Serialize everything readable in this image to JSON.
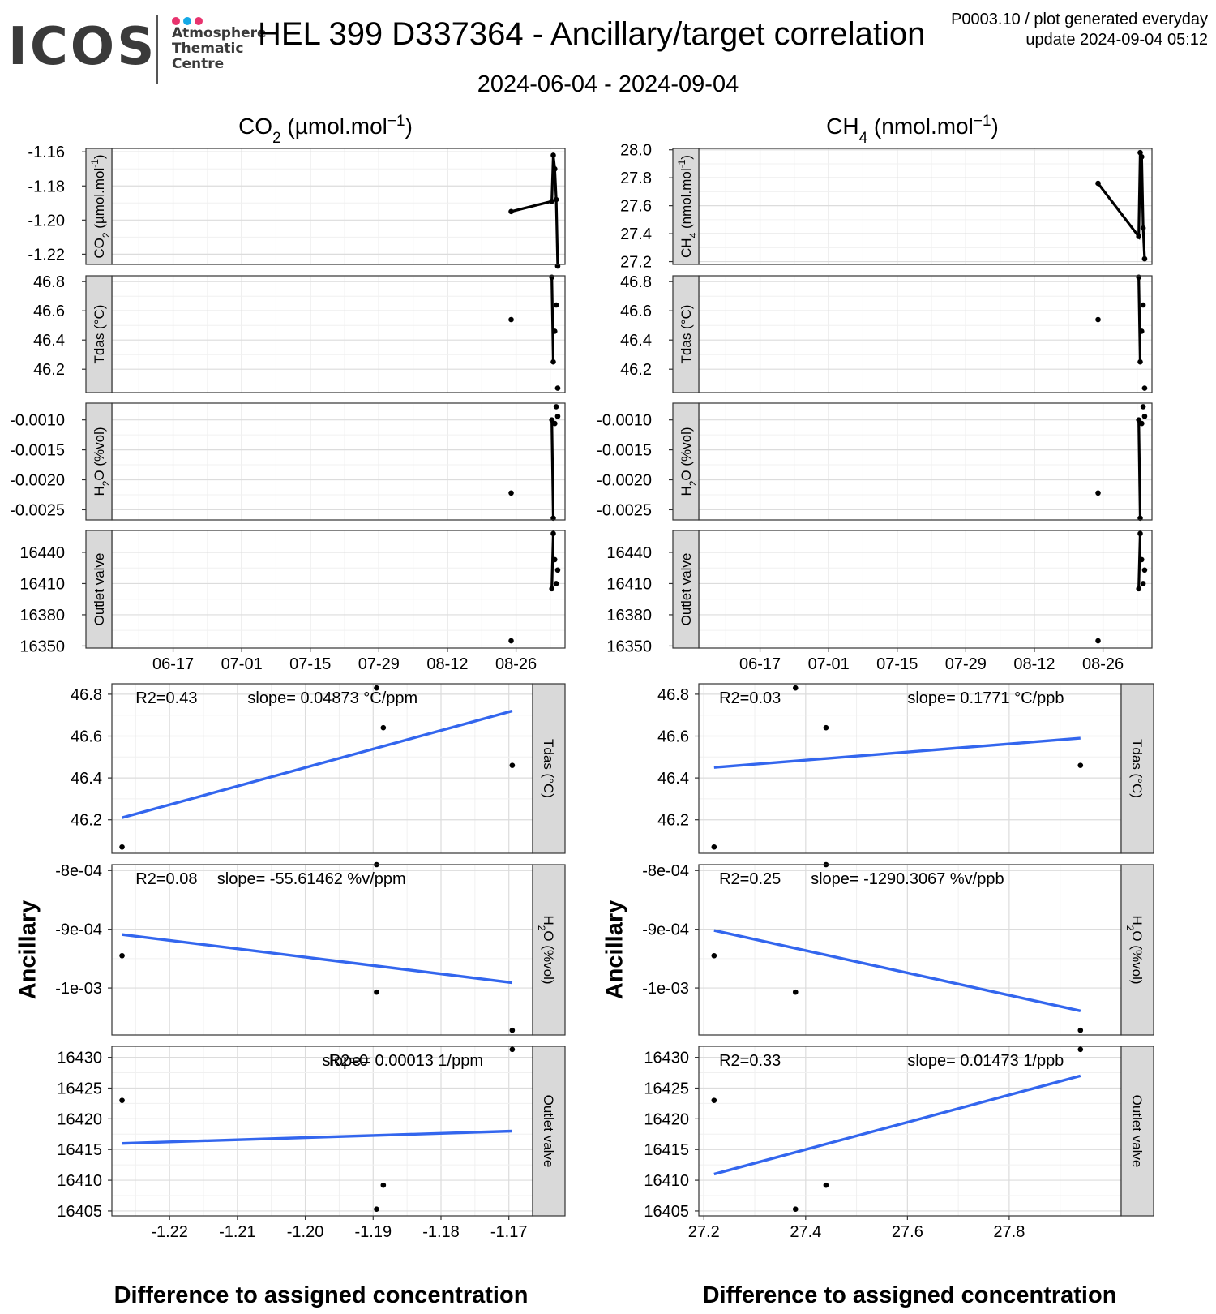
{
  "header": {
    "logo_word": "ICOS",
    "logo_lines": [
      "Atmosphere",
      "Thematic",
      "Centre"
    ],
    "logo_dot_colors": [
      "#e8336e",
      "#14a9e6",
      "#e8336e"
    ],
    "title": "HEL 399 D337364 - Ancillary/target correlation",
    "subtitle": "2024-06-04 - 2024-09-04",
    "meta_line1": "P0003.10 / plot generated everyday",
    "meta_line2": "update  2024-09-04 05:12"
  },
  "colors": {
    "line": "#000000",
    "fit": "#3366ee",
    "grid_major": "#dcdcdc",
    "grid_minor": "#f0f0f0",
    "strip": "#d9d9d9"
  },
  "chart_data": [
    {
      "type": "line",
      "group": "CO2",
      "column_title": "CO",
      "column_title_sub": "2",
      "column_title_rest": " (µmol.mol",
      "column_title_sup": "−1",
      "column_title_end": ")",
      "x_tick_labels": [
        "06-17",
        "07-01",
        "07-15",
        "07-29",
        "08-12",
        "08-26"
      ],
      "x_tick_days": [
        13,
        27,
        41,
        55,
        69,
        83
      ],
      "xlim_days": [
        0.5,
        93
      ],
      "panels": [
        {
          "strip": "CO2 (µmol.mol-1)",
          "ylim": [
            -1.226,
            -1.158
          ],
          "y_ticks": [
            -1.16,
            -1.18,
            -1.2,
            -1.22
          ],
          "y_tick_labels": [
            "-1.16",
            "-1.18",
            "-1.20",
            "-1.22"
          ],
          "points": [
            [
              82.0,
              -1.195
            ],
            [
              90.3,
              -1.189
            ],
            [
              90.6,
              -1.162
            ],
            [
              90.9,
              -1.17
            ],
            [
              91.2,
              -1.188
            ],
            [
              91.5,
              -1.227
            ]
          ],
          "line": true
        },
        {
          "strip": "Tdas (°C)",
          "ylim": [
            46.04,
            46.84
          ],
          "y_ticks": [
            46.8,
            46.6,
            46.4,
            46.2
          ],
          "y_tick_labels": [
            "46.8",
            "46.6",
            "46.4",
            "46.2"
          ],
          "points": [
            [
              82.0,
              46.54
            ],
            [
              90.3,
              46.83
            ],
            [
              90.6,
              46.25
            ],
            [
              90.9,
              46.46
            ],
            [
              91.2,
              46.64
            ],
            [
              91.5,
              46.07
            ]
          ],
          "line_segment": [
            [
              90.3,
              46.83
            ],
            [
              90.6,
              46.25
            ]
          ]
        },
        {
          "strip": "H2O (%vol)",
          "ylim": [
            -0.00267,
            -0.00072
          ],
          "y_ticks": [
            -0.001,
            -0.0015,
            -0.002,
            -0.0025
          ],
          "y_tick_labels": [
            "-0.0010",
            "-0.0015",
            "-0.0020",
            "-0.0025"
          ],
          "points": [
            [
              82.0,
              -0.00222
            ],
            [
              90.3,
              -0.001
            ],
            [
              90.6,
              -0.00264
            ],
            [
              90.9,
              -0.00106
            ],
            [
              91.2,
              -0.00078
            ],
            [
              91.5,
              -0.00094
            ]
          ],
          "line_segment": [
            [
              90.3,
              -0.001
            ],
            [
              90.6,
              -0.00264
            ]
          ]
        },
        {
          "strip": "Outlet valve",
          "ylim": [
            16348,
            16461
          ],
          "y_ticks": [
            16440,
            16410,
            16380,
            16350
          ],
          "y_tick_labels": [
            "16440",
            "16410",
            "16380",
            "16350"
          ],
          "points": [
            [
              82.0,
              16355
            ],
            [
              90.3,
              16405
            ],
            [
              90.6,
              16458
            ],
            [
              90.9,
              16433
            ],
            [
              91.2,
              16410
            ],
            [
              91.5,
              16423
            ]
          ],
          "line_segment": [
            [
              90.3,
              16405
            ],
            [
              90.6,
              16458
            ]
          ]
        }
      ]
    },
    {
      "type": "line",
      "group": "CH4",
      "column_title": "CH",
      "column_title_sub": "4",
      "column_title_rest": " (nmol.mol",
      "column_title_sup": "−1",
      "column_title_end": ")",
      "x_tick_labels": [
        "06-17",
        "07-01",
        "07-15",
        "07-29",
        "08-12",
        "08-26"
      ],
      "x_tick_days": [
        13,
        27,
        41,
        55,
        69,
        83
      ],
      "xlim_days": [
        0.5,
        93
      ],
      "panels": [
        {
          "strip": "CH4 (nmol.mol-1)",
          "ylim": [
            27.18,
            28.01
          ],
          "y_ticks": [
            28.0,
            27.8,
            27.6,
            27.4,
            27.2
          ],
          "y_tick_labels": [
            "28.0",
            "27.8",
            "27.6",
            "27.4",
            "27.2"
          ],
          "points": [
            [
              82.0,
              27.76
            ],
            [
              90.3,
              27.38
            ],
            [
              90.6,
              27.98
            ],
            [
              90.9,
              27.95
            ],
            [
              91.2,
              27.44
            ],
            [
              91.5,
              27.22
            ]
          ],
          "line": true
        },
        {
          "strip": "Tdas (°C)",
          "ylim": [
            46.04,
            46.84
          ],
          "y_ticks": [
            46.8,
            46.6,
            46.4,
            46.2
          ],
          "y_tick_labels": [
            "46.8",
            "46.6",
            "46.4",
            "46.2"
          ],
          "points": [
            [
              82.0,
              46.54
            ],
            [
              90.3,
              46.83
            ],
            [
              90.6,
              46.25
            ],
            [
              90.9,
              46.46
            ],
            [
              91.2,
              46.64
            ],
            [
              91.5,
              46.07
            ]
          ],
          "line_segment": [
            [
              90.3,
              46.83
            ],
            [
              90.6,
              46.25
            ]
          ]
        },
        {
          "strip": "H2O (%vol)",
          "ylim": [
            -0.00267,
            -0.00072
          ],
          "y_ticks": [
            -0.001,
            -0.0015,
            -0.002,
            -0.0025
          ],
          "y_tick_labels": [
            "-0.0010",
            "-0.0015",
            "-0.0020",
            "-0.0025"
          ],
          "points": [
            [
              82.0,
              -0.00222
            ],
            [
              90.3,
              -0.001
            ],
            [
              90.6,
              -0.00264
            ],
            [
              90.9,
              -0.00106
            ],
            [
              91.2,
              -0.00078
            ],
            [
              91.5,
              -0.00094
            ]
          ],
          "line_segment": [
            [
              90.3,
              -0.001
            ],
            [
              90.6,
              -0.00264
            ]
          ]
        },
        {
          "strip": "Outlet valve",
          "ylim": [
            16348,
            16461
          ],
          "y_ticks": [
            16440,
            16410,
            16380,
            16350
          ],
          "y_tick_labels": [
            "16440",
            "16410",
            "16380",
            "16350"
          ],
          "points": [
            [
              82.0,
              16355
            ],
            [
              90.3,
              16405
            ],
            [
              90.6,
              16458
            ],
            [
              90.9,
              16433
            ],
            [
              91.2,
              16410
            ],
            [
              91.5,
              16423
            ]
          ],
          "line_segment": [
            [
              90.3,
              16405
            ],
            [
              90.6,
              16458
            ]
          ]
        }
      ]
    },
    {
      "type": "scatter",
      "group": "CO2 correlation",
      "ylabel": "Ancillary",
      "xlabel": "Difference to assigned concentration",
      "xlim": [
        -1.2285,
        -1.1665
      ],
      "x_ticks": [
        -1.22,
        -1.21,
        -1.2,
        -1.19,
        -1.18,
        -1.17
      ],
      "x_tick_labels": [
        "-1.22",
        "-1.21",
        "-1.20",
        "-1.19",
        "-1.18",
        "-1.17"
      ],
      "panels": [
        {
          "strip": "Tdas (°C)",
          "ylim": [
            46.04,
            46.85
          ],
          "y_ticks": [
            46.8,
            46.6,
            46.4,
            46.2
          ],
          "y_tick_labels": [
            "46.8",
            "46.6",
            "46.4",
            "46.2"
          ],
          "points": [
            [
              -1.227,
              46.07
            ],
            [
              -1.1895,
              46.83
            ],
            [
              -1.1885,
              46.64
            ],
            [
              -1.1695,
              46.46
            ]
          ],
          "fit": [
            [
              -1.227,
              46.21
            ],
            [
              -1.1695,
              46.72
            ]
          ],
          "r2_text": "R2=0.43",
          "slope_text": "slope= 0.04873 °C/ppm",
          "r2_x": -1.225,
          "slope_x": -1.2085
        },
        {
          "strip": "H2O (%vol)",
          "ylim": [
            -0.00108,
            -0.00079
          ],
          "y_ticks": [
            -0.0008,
            -0.0009,
            -0.001
          ],
          "y_tick_labels": [
            "-8e-04",
            "-9e-04",
            "-1e-03"
          ],
          "points": [
            [
              -1.227,
              -0.000945
            ],
            [
              -1.1895,
              -0.00079
            ],
            [
              -1.1895,
              -0.001007
            ],
            [
              -1.1695,
              -0.001072
            ]
          ],
          "fit": [
            [
              -1.227,
              -0.000909
            ],
            [
              -1.1695,
              -0.000991
            ]
          ],
          "r2_text": "R2=0.08",
          "slope_text": "slope= -55.61462 %v/ppm",
          "r2_x": -1.225,
          "slope_x": -1.213
        },
        {
          "strip": "Outlet valve",
          "ylim": [
            16404.2,
            16431.8
          ],
          "y_ticks": [
            16430,
            16425,
            16420,
            16415,
            16410,
            16405
          ],
          "y_tick_labels": [
            "16430",
            "16425",
            "16420",
            "16415",
            "16410",
            "16405"
          ],
          "points": [
            [
              -1.227,
              16423
            ],
            [
              -1.1895,
              16405.3
            ],
            [
              -1.1885,
              16409.2
            ],
            [
              -1.1695,
              16431.3
            ]
          ],
          "fit": [
            [
              -1.227,
              16416
            ],
            [
              -1.1695,
              16418
            ]
          ],
          "r2_text": "R2=0",
          "slope_text": "slope= 0.00013 1/ppm",
          "r2_x": -1.1965,
          "slope_x": -1.1975
        }
      ]
    },
    {
      "type": "scatter",
      "group": "CH4 correlation",
      "ylabel": "Ancillary",
      "xlabel": "Difference to assigned concentration",
      "xlim": [
        27.19,
        28.02
      ],
      "x_ticks": [
        27.2,
        27.4,
        27.6,
        27.8
      ],
      "x_tick_labels": [
        "27.2",
        "27.4",
        "27.6",
        "27.8"
      ],
      "panels": [
        {
          "strip": "Tdas (°C)",
          "ylim": [
            46.04,
            46.85
          ],
          "y_ticks": [
            46.8,
            46.6,
            46.4,
            46.2
          ],
          "y_tick_labels": [
            "46.8",
            "46.6",
            "46.4",
            "46.2"
          ],
          "points": [
            [
              27.22,
              46.07
            ],
            [
              27.38,
              46.83
            ],
            [
              27.44,
              46.64
            ],
            [
              27.94,
              46.46
            ]
          ],
          "fit": [
            [
              27.22,
              46.45
            ],
            [
              27.94,
              46.59
            ]
          ],
          "r2_text": "R2=0.03",
          "slope_text": "slope= 0.1771 °C/ppb",
          "r2_x": 27.23,
          "slope_x": 27.6
        },
        {
          "strip": "H2O (%vol)",
          "ylim": [
            -0.00108,
            -0.00079
          ],
          "y_ticks": [
            -0.0008,
            -0.0009,
            -0.001
          ],
          "y_tick_labels": [
            "-8e-04",
            "-9e-04",
            "-1e-03"
          ],
          "points": [
            [
              27.22,
              -0.000945
            ],
            [
              27.44,
              -0.00079
            ],
            [
              27.38,
              -0.001007
            ],
            [
              27.94,
              -0.001072
            ]
          ],
          "fit": [
            [
              27.22,
              -0.000902
            ],
            [
              27.94,
              -0.001039
            ]
          ],
          "r2_text": "R2=0.25",
          "slope_text": "slope= -1290.3067 %v/ppb",
          "r2_x": 27.23,
          "slope_x": 27.41
        },
        {
          "strip": "Outlet valve",
          "ylim": [
            16404.2,
            16431.8
          ],
          "y_ticks": [
            16430,
            16425,
            16420,
            16415,
            16410,
            16405
          ],
          "y_tick_labels": [
            "16430",
            "16425",
            "16420",
            "16415",
            "16410",
            "16405"
          ],
          "points": [
            [
              27.22,
              16423
            ],
            [
              27.38,
              16405.3
            ],
            [
              27.44,
              16409.2
            ],
            [
              27.94,
              16431.3
            ]
          ],
          "fit": [
            [
              27.22,
              16411
            ],
            [
              27.94,
              16427
            ]
          ],
          "r2_text": "R2=0.33",
          "slope_text": "slope= 0.01473 1/ppb",
          "r2_x": 27.23,
          "slope_x": 27.6
        }
      ]
    }
  ]
}
